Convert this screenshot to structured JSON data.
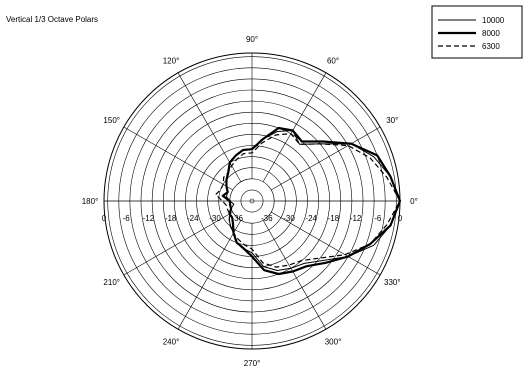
{
  "chart_data": {
    "type": "polar-line",
    "title": "Vertical 1/3 Octave Polars",
    "angle_unit": "deg",
    "angle_ticks": [
      0,
      30,
      60,
      90,
      120,
      150,
      180,
      210,
      240,
      270,
      300,
      330
    ],
    "angle_tick_labels": [
      "0°",
      "30°",
      "60°",
      "90°",
      "120°",
      "150°",
      "180°",
      "210°",
      "240°",
      "270°",
      "300°",
      "330°"
    ],
    "radial_unit": "dB",
    "rlim": [
      -40,
      0
    ],
    "r_ticks": [
      0,
      -6,
      -12,
      -18,
      -24,
      -30,
      -36
    ],
    "r_tick_labels": [
      "0",
      "-6",
      "-12",
      "-18",
      "-24",
      "-30",
      "-36"
    ],
    "grid": true,
    "legend_position": "top-right",
    "series": [
      {
        "name": "10000",
        "style": "thin-solid",
        "points": [
          [
            0,
            0
          ],
          [
            10,
            -2
          ],
          [
            20,
            -5
          ],
          [
            30,
            -9
          ],
          [
            40,
            -16
          ],
          [
            50,
            -20
          ],
          [
            60,
            -18
          ],
          [
            70,
            -20
          ],
          [
            80,
            -23
          ],
          [
            90,
            -26
          ],
          [
            100,
            -26
          ],
          [
            110,
            -27
          ],
          [
            120,
            -28
          ],
          [
            130,
            -30
          ],
          [
            140,
            -31
          ],
          [
            150,
            -32
          ],
          [
            160,
            -33
          ],
          [
            170,
            -33
          ],
          [
            180,
            -34
          ],
          [
            190,
            -35
          ],
          [
            200,
            -34
          ],
          [
            210,
            -33
          ],
          [
            220,
            -32
          ],
          [
            230,
            -31
          ],
          [
            240,
            -30
          ],
          [
            250,
            -28
          ],
          [
            260,
            -27
          ],
          [
            270,
            -26
          ],
          [
            280,
            -22
          ],
          [
            290,
            -20
          ],
          [
            300,
            -19
          ],
          [
            310,
            -18
          ],
          [
            320,
            -15
          ],
          [
            330,
            -10
          ],
          [
            340,
            -5
          ],
          [
            350,
            -2
          ],
          [
            360,
            0
          ]
        ]
      },
      {
        "name": "8000",
        "style": "thick-solid",
        "points": [
          [
            0,
            0
          ],
          [
            10,
            -2
          ],
          [
            20,
            -4
          ],
          [
            30,
            -9
          ],
          [
            40,
            -15
          ],
          [
            50,
            -19
          ],
          [
            60,
            -18
          ],
          [
            70,
            -19
          ],
          [
            80,
            -23
          ],
          [
            90,
            -26
          ],
          [
            100,
            -26
          ],
          [
            110,
            -27
          ],
          [
            120,
            -28
          ],
          [
            130,
            -30
          ],
          [
            140,
            -31
          ],
          [
            150,
            -32
          ],
          [
            160,
            -33
          ],
          [
            170,
            -32
          ],
          [
            180,
            -34
          ],
          [
            190,
            -34
          ],
          [
            200,
            -34
          ],
          [
            210,
            -33
          ],
          [
            220,
            -33
          ],
          [
            230,
            -32
          ],
          [
            240,
            -30
          ],
          [
            250,
            -28
          ],
          [
            260,
            -27
          ],
          [
            270,
            -25
          ],
          [
            280,
            -21
          ],
          [
            290,
            -19
          ],
          [
            300,
            -18
          ],
          [
            310,
            -17
          ],
          [
            320,
            -14
          ],
          [
            330,
            -10
          ],
          [
            340,
            -6
          ],
          [
            350,
            -2
          ],
          [
            360,
            0
          ]
        ]
      },
      {
        "name": "6300",
        "style": "dashed",
        "points": [
          [
            0,
            0
          ],
          [
            10,
            -3
          ],
          [
            20,
            -6
          ],
          [
            30,
            -10
          ],
          [
            40,
            -16
          ],
          [
            50,
            -20
          ],
          [
            60,
            -19
          ],
          [
            70,
            -21
          ],
          [
            80,
            -24
          ],
          [
            90,
            -27
          ],
          [
            100,
            -27
          ],
          [
            110,
            -28
          ],
          [
            120,
            -29
          ],
          [
            130,
            -30
          ],
          [
            140,
            -30
          ],
          [
            150,
            -31
          ],
          [
            160,
            -31
          ],
          [
            170,
            -30
          ],
          [
            180,
            -32
          ],
          [
            190,
            -33
          ],
          [
            200,
            -33
          ],
          [
            210,
            -33
          ],
          [
            220,
            -32
          ],
          [
            230,
            -31
          ],
          [
            240,
            -30
          ],
          [
            250,
            -29
          ],
          [
            260,
            -28
          ],
          [
            270,
            -27
          ],
          [
            280,
            -23
          ],
          [
            290,
            -21
          ],
          [
            300,
            -20
          ],
          [
            310,
            -19
          ],
          [
            320,
            -16
          ],
          [
            330,
            -11
          ],
          [
            340,
            -6
          ],
          [
            350,
            -3
          ],
          [
            360,
            0
          ]
        ]
      }
    ]
  }
}
